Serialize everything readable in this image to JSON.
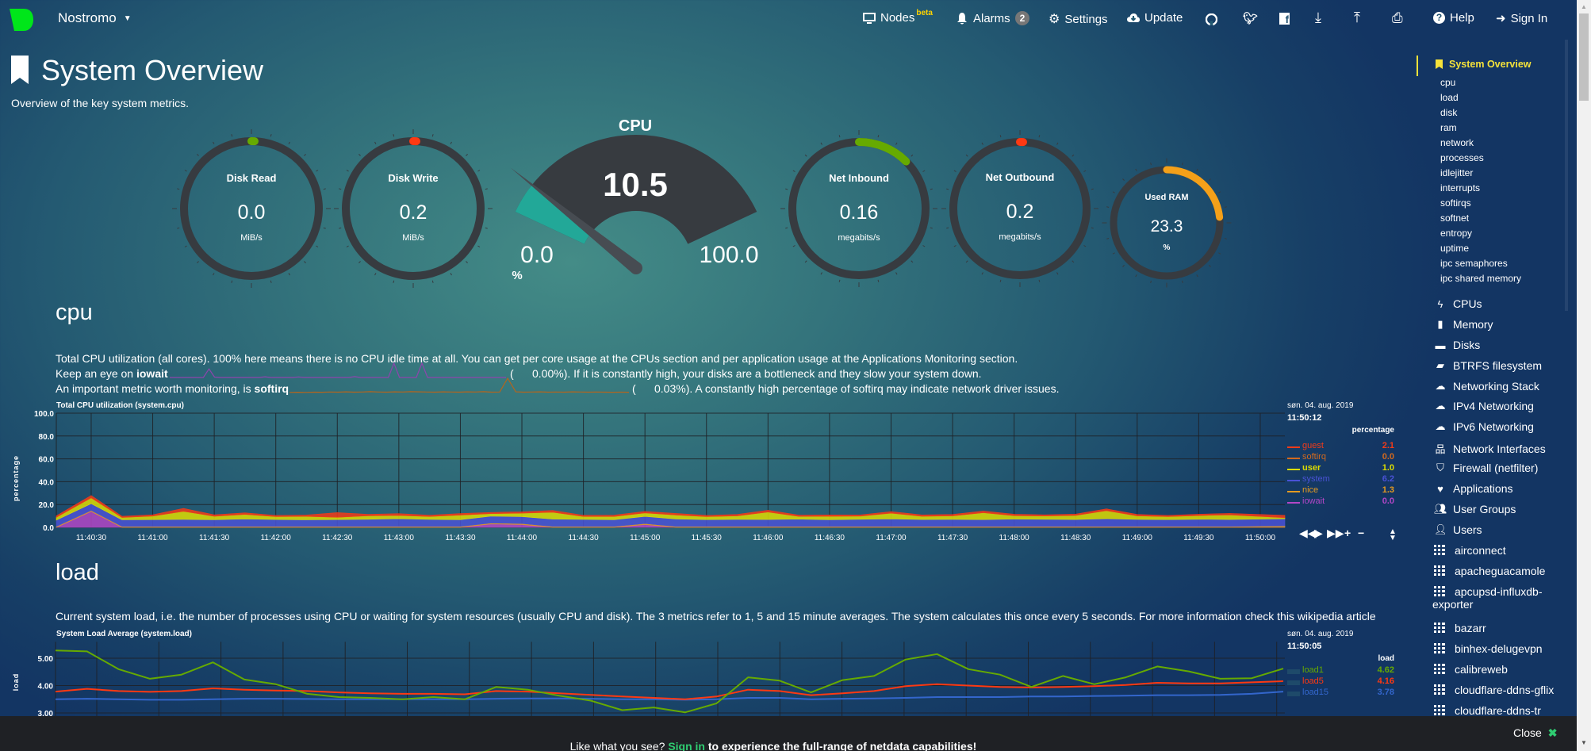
{
  "header": {
    "brand": "Nostromo",
    "nodes": {
      "label": "Nodes",
      "badge": "beta"
    },
    "alarms": {
      "label": "Alarms",
      "count": "2"
    },
    "settings": "Settings",
    "update": "Update",
    "icons": [
      "github-icon",
      "twitter-icon",
      "facebook-icon",
      "download-icon",
      "upload-icon",
      "print-icon"
    ],
    "help": "Help",
    "sign_in": "Sign In"
  },
  "page": {
    "title": "System Overview",
    "subtitle": "Overview of the key system metrics."
  },
  "gauges": {
    "items": [
      {
        "title": "Disk Read",
        "value": "0.0",
        "units": "MiB/s",
        "fill": 0,
        "color": "#66aa00"
      },
      {
        "title": "Disk Write",
        "value": "0.2",
        "units": "MiB/s",
        "fill": 0.005,
        "color": "#fe3912"
      },
      {
        "title": "Net Inbound",
        "value": "0.16",
        "units": "megabits/s",
        "fill": 0.125,
        "color": "#66aa00"
      },
      {
        "title": "Net Outbound",
        "value": "0.2",
        "units": "megabits/s",
        "fill": 0.005,
        "color": "#fe3912"
      },
      {
        "title": "Used RAM",
        "value": "23.3",
        "units": "%",
        "fill": 0.233,
        "color": "#f4a019"
      }
    ],
    "cpu": {
      "title": "CPU",
      "value": "10.5",
      "min": "0.0",
      "max": "100.0",
      "units": "%",
      "fill": 0.105,
      "color": "#22a898",
      "track_color": "#373b40"
    }
  },
  "sections": {
    "cpu": {
      "heading": "cpu",
      "line1": "Total CPU utilization (all cores). 100% here means there is no CPU idle time at all. You can get per core usage at the CPUs section and per application usage at the Applications Monitoring section.",
      "line2_pre": "Keep an eye on ",
      "line2_bold": "iowait",
      "line2_val": "(      0.00%). If it is constantly high, your disks are a bottleneck and they slow your system down.",
      "line3_pre": "An important metric worth monitoring, is ",
      "line3_bold": "softirq",
      "line3_val": "(      0.03%). A constantly high percentage of softirq may indicate network driver issues.",
      "sparklines": {
        "iowait": {
          "color": "#8e44ad",
          "values": [
            0,
            0,
            0,
            0,
            0,
            0,
            0,
            6,
            0.3,
            0,
            0,
            0,
            0,
            0,
            0,
            0,
            0,
            0.5,
            0,
            0,
            0,
            0,
            0,
            0.4,
            0,
            0,
            0,
            0,
            0,
            0,
            0,
            0,
            0,
            0.6,
            0,
            0,
            0,
            0,
            0,
            0,
            10,
            0,
            0,
            0,
            0,
            10,
            0,
            0,
            0,
            0,
            0,
            0,
            0,
            0,
            0,
            0,
            0,
            0,
            0,
            0,
            0
          ]
        },
        "softirq": {
          "color": "#b5651d",
          "values": [
            0.1,
            0.2,
            0.1,
            0.3,
            0.2,
            0.4,
            0.3,
            0.5,
            0.3,
            0.4,
            0.6,
            0.4,
            0.3,
            0.5,
            0.4,
            0.6,
            0.5,
            0.4,
            0.3,
            0.5,
            0.4,
            0.3,
            0.5,
            0.4,
            0.6,
            0.3,
            0.4,
            10,
            0.5,
            0.3,
            0.4,
            0.5,
            0.3,
            0.4,
            0.3,
            0.5,
            0.4,
            0.3,
            0.4,
            0.3,
            0.2,
            0.3,
            0.2
          ]
        }
      },
      "legend": {
        "date": "søn. 04. aug. 2019",
        "time": "11:50:12",
        "units": "percentage"
      }
    },
    "load": {
      "heading": "load",
      "line1": "Current system load, i.e. the number of processes using CPU or waiting for system resources (usually CPU and disk). The 3 metrics refer to 1, 5 and 15 minute averages. The system calculates this once every 5 seconds. For more information check this wikipedia article",
      "legend": {
        "date": "søn. 04. aug. 2019",
        "time": "11:50:05",
        "units": "load"
      }
    }
  },
  "chart_data": [
    {
      "type": "area",
      "stacked": true,
      "title": "Total CPU utilization (system.cpu)",
      "ylabel": "percentage",
      "ylim": [
        0,
        100
      ],
      "xlim": [
        "11:40:13",
        "11:50:12"
      ],
      "y_ticks": [
        "0.0",
        "20.0",
        "40.0",
        "60.0",
        "80.0",
        "100.0"
      ],
      "x_ticks": [
        "11:40:30",
        "11:41:00",
        "11:41:30",
        "11:42:00",
        "11:42:30",
        "11:43:00",
        "11:43:30",
        "11:44:00",
        "11:44:30",
        "11:45:00",
        "11:45:30",
        "11:46:00",
        "11:46:30",
        "11:47:00",
        "11:47:30",
        "11:48:00",
        "11:48:30",
        "11:49:00",
        "11:49:30",
        "11:50:00"
      ],
      "grid": true,
      "legend_position": "right",
      "x": [
        "11:40:15",
        "11:40:30",
        "11:40:45",
        "11:41:00",
        "11:41:15",
        "11:41:30",
        "11:41:45",
        "11:42:00",
        "11:42:15",
        "11:42:30",
        "11:42:45",
        "11:43:00",
        "11:43:15",
        "11:43:30",
        "11:43:45",
        "11:44:00",
        "11:44:15",
        "11:44:30",
        "11:44:45",
        "11:45:00",
        "11:45:15",
        "11:45:30",
        "11:45:45",
        "11:46:00",
        "11:46:15",
        "11:46:30",
        "11:46:45",
        "11:47:00",
        "11:47:15",
        "11:47:30",
        "11:47:45",
        "11:48:00",
        "11:48:15",
        "11:48:30",
        "11:48:45",
        "11:49:00",
        "11:49:15",
        "11:49:30",
        "11:49:45",
        "11:50:00"
      ],
      "series": [
        {
          "name": "guest",
          "color": "#f23b18",
          "legend_value": "2.1",
          "values": [
            1.2,
            2,
            1,
            1.1,
            2.5,
            1.2,
            1.3,
            1,
            1.1,
            4,
            1.2,
            1.5,
            1,
            1.3,
            1,
            1.1,
            1.5,
            1,
            1.1,
            1.2,
            1.3,
            1,
            1.2,
            1.5,
            1,
            1.1,
            1,
            1.3,
            1.1,
            1.2,
            1.4,
            1.2,
            1,
            1.1,
            1.5,
            1.2,
            1,
            1.1,
            1.2,
            2.1
          ]
        },
        {
          "name": "softirq",
          "color": "#d2691e",
          "legend_value": "0.0",
          "values": [
            0.1,
            0.1,
            0.1,
            0.1,
            0.1,
            0.1,
            0.1,
            0.1,
            0.1,
            0.1,
            0.1,
            0.1,
            0.1,
            0.1,
            0.1,
            0.1,
            0.1,
            0.1,
            0.1,
            0.1,
            0.1,
            0.1,
            0.1,
            0.1,
            0.1,
            0.1,
            0.1,
            0.1,
            0.1,
            0.1,
            0.1,
            0.1,
            0.1,
            0.1,
            0.1,
            0.1,
            0.1,
            0.1,
            0.1,
            0
          ]
        },
        {
          "name": "user",
          "color": "#dddd00",
          "legend_value": "1.0",
          "values": [
            2.5,
            5,
            2,
            3,
            7,
            3,
            4,
            2.5,
            3,
            2,
            3,
            2.8,
            2.5,
            4,
            2.2,
            3,
            6,
            2.5,
            2.8,
            3,
            3.5,
            2.6,
            3,
            6.5,
            2.4,
            3,
            2.7,
            5,
            2.8,
            3,
            6,
            3,
            2.8,
            3.5,
            7,
            3,
            2.6,
            3.2,
            4,
            1
          ]
        },
        {
          "name": "system",
          "color": "#4a52d6",
          "legend_value": "6.2",
          "values": [
            5.5,
            6,
            5.8,
            6,
            6.2,
            5.9,
            6.5,
            6.1,
            5.8,
            6,
            6.3,
            6.8,
            6.2,
            5.9,
            6,
            6.1,
            6.4,
            6.2,
            5.9,
            6.3,
            6.5,
            6,
            6.2,
            6.1,
            6.4,
            5.9,
            6.3,
            6.6,
            6.1,
            6.2,
            6,
            6.4,
            6.3,
            6.1,
            6.8,
            6.2,
            6,
            6.3,
            6.1,
            6.2
          ]
        },
        {
          "name": "nice",
          "color": "#e49a21",
          "legend_value": "1.3",
          "values": [
            0.8,
            0.8,
            0.8,
            0.8,
            0.8,
            0.8,
            0.8,
            0.8,
            0.8,
            0.8,
            0.8,
            0.8,
            0.8,
            0.8,
            0.8,
            0.8,
            0.8,
            0.8,
            0.8,
            0.8,
            0.8,
            0.8,
            0.8,
            0.8,
            0.8,
            0.8,
            0.8,
            0.8,
            0.8,
            0.8,
            0.8,
            0.8,
            0.8,
            0.8,
            0.8,
            0.8,
            0.8,
            0.8,
            0.8,
            1.3
          ]
        },
        {
          "name": "iowait",
          "color": "#b347c7",
          "legend_value": "0.0",
          "values": [
            0,
            14,
            0,
            0,
            0,
            0,
            0,
            0,
            0,
            0,
            0,
            0,
            0,
            0,
            3,
            2.5,
            0,
            0,
            0,
            2.5,
            0,
            0,
            0,
            0,
            0,
            0,
            0,
            0,
            0,
            0,
            0,
            0,
            0,
            0,
            0,
            0,
            0,
            0,
            0,
            0
          ]
        }
      ]
    },
    {
      "type": "line",
      "title": "System Load Average (system.load)",
      "ylabel": "load",
      "ylim": [
        3.0,
        5.6
      ],
      "y_ticks": [
        "3.00",
        "4.00",
        "5.00"
      ],
      "grid": true,
      "legend_position": "right",
      "series": [
        {
          "name": "load1",
          "color": "#66aa00",
          "legend_value": "4.62",
          "values": [
            5.28,
            5.25,
            4.6,
            4.25,
            4.4,
            4.85,
            4.22,
            4.05,
            3.7,
            3.58,
            3.55,
            3.5,
            3.58,
            3.5,
            3.95,
            3.85,
            3.63,
            3.45,
            3.1,
            3.2,
            3.02,
            3.35,
            4.3,
            4.18,
            3.75,
            4.2,
            4.35,
            4.95,
            5.15,
            4.6,
            4.4,
            3.95,
            4.35,
            4.05,
            4.3,
            4.7,
            4.52,
            4.25,
            4.27,
            4.62
          ]
        },
        {
          "name": "load5",
          "color": "#fe3912",
          "legend_value": "4.16",
          "values": [
            3.78,
            3.88,
            3.8,
            3.77,
            3.8,
            3.9,
            3.85,
            3.82,
            3.8,
            3.75,
            3.72,
            3.7,
            3.7,
            3.68,
            3.8,
            3.78,
            3.72,
            3.66,
            3.6,
            3.55,
            3.5,
            3.6,
            3.85,
            3.8,
            3.65,
            3.72,
            3.8,
            3.98,
            4.05,
            4.0,
            3.95,
            3.93,
            3.95,
            3.98,
            4.02,
            4.1,
            4.08,
            4.08,
            4.12,
            4.16
          ]
        },
        {
          "name": "load15",
          "color": "#3366cc",
          "legend_value": "3.78",
          "values": [
            3.5,
            3.52,
            3.5,
            3.48,
            3.48,
            3.5,
            3.52,
            3.52,
            3.51,
            3.5,
            3.5,
            3.5,
            3.5,
            3.5,
            3.52,
            3.53,
            3.53,
            3.52,
            3.5,
            3.5,
            3.48,
            3.5,
            3.55,
            3.55,
            3.5,
            3.52,
            3.53,
            3.55,
            3.58,
            3.58,
            3.58,
            3.6,
            3.6,
            3.62,
            3.63,
            3.65,
            3.65,
            3.66,
            3.7,
            3.78
          ]
        }
      ]
    }
  ],
  "sidebar": {
    "active": {
      "label": "System Overview",
      "color": "#f5e23a"
    },
    "sub_items": [
      "cpu",
      "load",
      "disk",
      "ram",
      "network",
      "processes",
      "idlejitter",
      "interrupts",
      "softirqs",
      "softnet",
      "entropy",
      "uptime",
      "ipc semaphores",
      "ipc shared memory"
    ],
    "sections": [
      {
        "label": "CPUs",
        "icon": "bolt-icon"
      },
      {
        "label": "Memory",
        "icon": "memory-icon"
      },
      {
        "label": "Disks",
        "icon": "hdd-icon"
      },
      {
        "label": "BTRFS filesystem",
        "icon": "folder-open-icon"
      },
      {
        "label": "Networking Stack",
        "icon": "cloud-icon"
      },
      {
        "label": "IPv4 Networking",
        "icon": "cloud-icon"
      },
      {
        "label": "IPv6 Networking",
        "icon": "cloud-icon"
      },
      {
        "label": "Network Interfaces",
        "icon": "sitemap-icon"
      },
      {
        "label": "Firewall (netfilter)",
        "icon": "shield-icon"
      },
      {
        "label": "Applications",
        "icon": "heartbeat-icon"
      },
      {
        "label": "User Groups",
        "icon": "users-icon"
      },
      {
        "label": "Users",
        "icon": "user-icon"
      }
    ],
    "apps": [
      "airconnect",
      "apacheguacamole",
      "apcupsd-influxdb-",
      "bazarr",
      "binhex-delugevpn",
      "calibreweb",
      "cloudflare-ddns-gflix",
      "cloudflare-ddns-tr"
    ],
    "apps_wrap": "exporter"
  },
  "footer": {
    "pre": "Like what you see? ",
    "link": "Sign in",
    "post": " to experience the full-range of netdata capabilities!",
    "close": "Close"
  }
}
